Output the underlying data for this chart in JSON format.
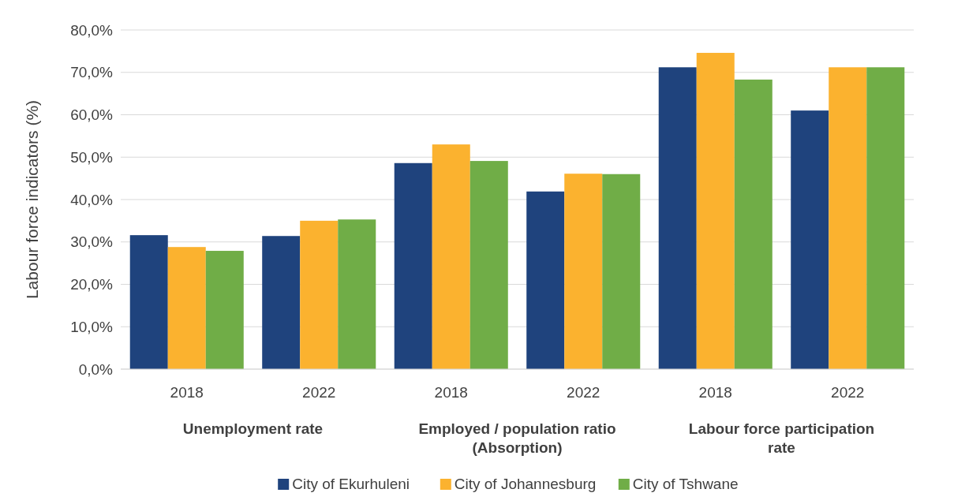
{
  "chart_data": {
    "type": "bar",
    "ylabel": "Labour force indicators (%)",
    "categories": [
      "2018",
      "2022",
      "2018",
      "2022",
      "2018",
      "2022"
    ],
    "annotations": [
      "Unemployment rate",
      "Employed / population ratio (Absorption)",
      "Labour force participation rate"
    ],
    "series": [
      {
        "name": "City of Ekurhuleni",
        "color": "#1f437d",
        "values": [
          31.6,
          31.4,
          48.6,
          41.9,
          71.2,
          61.0
        ]
      },
      {
        "name": "City of Johannesburg",
        "color": "#fbb22f",
        "values": [
          28.8,
          35.0,
          53.0,
          46.1,
          74.6,
          71.2
        ]
      },
      {
        "name": "City of Tshwane",
        "color": "#70ad47",
        "values": [
          27.9,
          35.3,
          49.1,
          46.0,
          68.3,
          71.2
        ]
      }
    ],
    "ylim": [
      0,
      80
    ],
    "yticks": [
      {
        "value": 0,
        "label": "0,0%"
      },
      {
        "value": 10,
        "label": "10,0%"
      },
      {
        "value": 20,
        "label": "20,0%"
      },
      {
        "value": 30,
        "label": "30,0%"
      },
      {
        "value": 40,
        "label": "40,0%"
      },
      {
        "value": 50,
        "label": "50,0%"
      },
      {
        "value": 60,
        "label": "60,0%"
      },
      {
        "value": 70,
        "label": "70,0%"
      },
      {
        "value": 80,
        "label": "80,0%"
      }
    ],
    "grid": "y",
    "legend": "bottom"
  }
}
